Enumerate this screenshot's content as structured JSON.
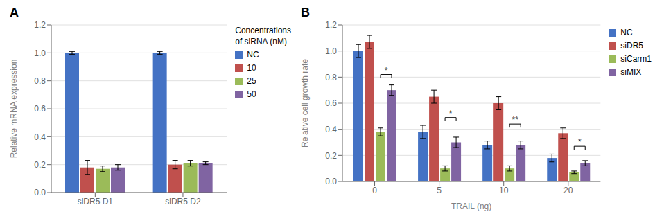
{
  "chart_data": [
    {
      "type": "bar",
      "title": "A",
      "ylabel": "Relative mRNA expression",
      "categories": [
        "siDR5 D1",
        "siDR5 D2"
      ],
      "series": [
        {
          "name": "NC",
          "color": "#4472C4",
          "values": [
            1.0,
            1.0
          ],
          "errors": [
            0.01,
            0.01
          ]
        },
        {
          "name": "10",
          "color": "#C0504D",
          "values": [
            0.18,
            0.2
          ],
          "errors": [
            0.05,
            0.03
          ]
        },
        {
          "name": "25",
          "color": "#9BBB59",
          "values": [
            0.17,
            0.21
          ],
          "errors": [
            0.02,
            0.02
          ]
        },
        {
          "name": "50",
          "color": "#8064A2",
          "values": [
            0.18,
            0.21
          ],
          "errors": [
            0.02,
            0.01
          ]
        }
      ],
      "ylim": [
        0,
        1.2
      ],
      "yticks": [
        {
          "value": 0,
          "label": "0.0"
        },
        0.2,
        0.4,
        0.6,
        0.8,
        {
          "value": 1.0,
          "label": "1.0"
        },
        1.2
      ],
      "grid": true,
      "legend": "right",
      "legend_title": "Concentrations\nof siRNA (nM)"
    },
    {
      "type": "bar",
      "title": "B",
      "ylabel": "Relative cell growth rate",
      "xlabel": "TRAIL (ng)",
      "categories": [
        "0",
        "5",
        "10",
        "20"
      ],
      "series": [
        {
          "name": "NC",
          "color": "#4472C4",
          "values": [
            1.0,
            0.38,
            0.28,
            0.18
          ],
          "errors": [
            0.05,
            0.05,
            0.03,
            0.03
          ]
        },
        {
          "name": "siDR5",
          "color": "#C0504D",
          "values": [
            1.07,
            0.65,
            0.6,
            0.37
          ],
          "errors": [
            0.05,
            0.05,
            0.05,
            0.04
          ]
        },
        {
          "name": "siCarm1",
          "color": "#9BBB59",
          "values": [
            0.38,
            0.1,
            0.1,
            0.07
          ],
          "errors": [
            0.03,
            0.02,
            0.02,
            0.01
          ]
        },
        {
          "name": "siMIX",
          "color": "#8064A2",
          "values": [
            0.7,
            0.3,
            0.28,
            0.14
          ],
          "errors": [
            0.04,
            0.04,
            0.03,
            0.02
          ]
        }
      ],
      "annotations": [
        {
          "text": "*",
          "category": "0",
          "series1": "siCarm1",
          "series2": "siMIX",
          "y": 0.82
        },
        {
          "text": "*",
          "category": "5",
          "series1": "siCarm1",
          "series2": "siMIX",
          "y": 0.49
        },
        {
          "text": "**",
          "category": "10",
          "series1": "siCarm1",
          "series2": "siMIX",
          "y": 0.44
        },
        {
          "text": "*",
          "category": "20",
          "series1": "siCarm1",
          "series2": "siMIX",
          "y": 0.27
        }
      ],
      "ylim": [
        0,
        1.2
      ],
      "yticks": [
        {
          "value": 0,
          "label": "0.0"
        },
        0.2,
        0.4,
        0.6,
        0.8,
        {
          "value": 1.0,
          "label": "1.0"
        },
        1.2
      ],
      "grid": true,
      "legend": "right"
    }
  ]
}
